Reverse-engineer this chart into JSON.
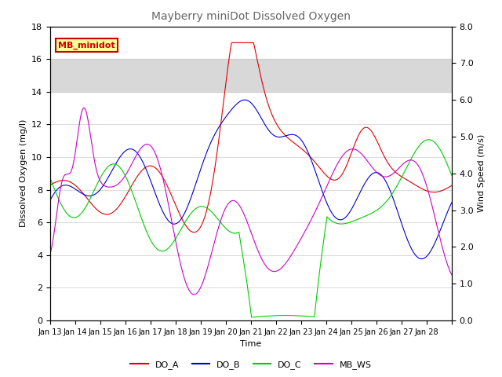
{
  "title": "Mayberry miniDot Dissolved Oxygen",
  "xlabel": "Time",
  "ylabel_left": "Dissolved Oxygen (mg/l)",
  "ylabel_right": "Wind Speed (m/s)",
  "ylim_left": [
    0,
    18
  ],
  "ylim_right": [
    0.0,
    8.0
  ],
  "yticks_left": [
    0,
    2,
    4,
    6,
    8,
    10,
    12,
    14,
    16,
    18
  ],
  "yticks_right": [
    0.0,
    1.0,
    2.0,
    3.0,
    4.0,
    5.0,
    6.0,
    7.0,
    8.0
  ],
  "shaded_band": [
    14.0,
    16.0
  ],
  "shaded_color": "#d8d8d8",
  "n_days": 16,
  "x_tick_labels": [
    "Jan 13",
    "Jan 14",
    "Jan 15",
    "Jan 16",
    "Jan 17",
    "Jan 18",
    "Jan 19",
    "Jan 20",
    "Jan 21",
    "Jan 22",
    "Jan 23",
    "Jan 24",
    "Jan 25",
    "Jan 26",
    "Jan 27",
    "Jan 28"
  ],
  "legend_box_label": "MB_minidot",
  "legend_box_color": "#cc0000",
  "legend_box_bg": "#ffff99",
  "series_colors": {
    "DO_A": "#dd0000",
    "DO_B": "#0000cc",
    "DO_C": "#00cc00",
    "MB_WS": "#cc00cc"
  },
  "background_color": "#ffffff",
  "title_color": "#666666",
  "seed": 7
}
